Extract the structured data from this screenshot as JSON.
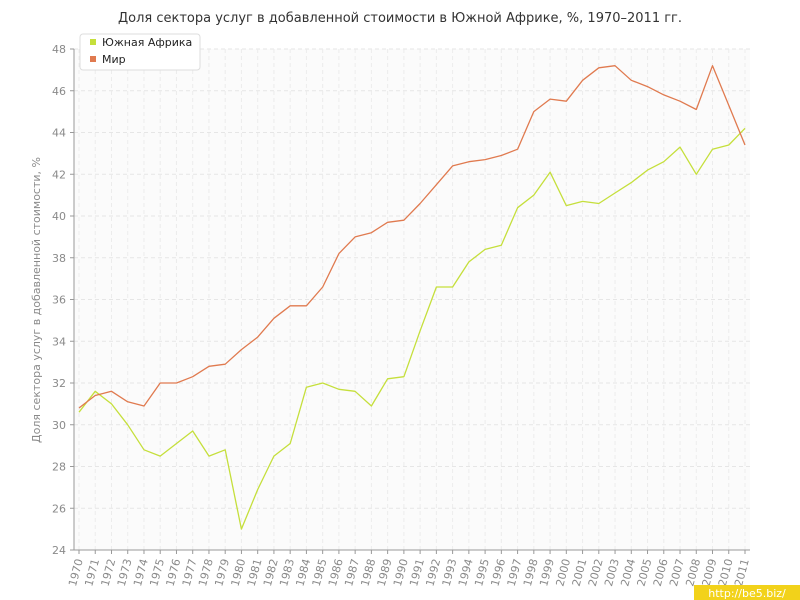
{
  "chart_data": {
    "type": "line",
    "title": "Доля сектора услуг в добавленной стоимости в Южной Африке, %, 1970–2011 гг.",
    "xlabel": "",
    "ylabel": "Доля сектора услуг в добавленной стоимости, %",
    "x": [
      "1970",
      "1971",
      "1972",
      "1973",
      "1974",
      "1975",
      "1976",
      "1977",
      "1978",
      "1979",
      "1980",
      "1981",
      "1982",
      "1983",
      "1984",
      "1985",
      "1986",
      "1987",
      "1988",
      "1989",
      "1990",
      "1991",
      "1992",
      "1993",
      "1994",
      "1995",
      "1996",
      "1997",
      "1998",
      "1999",
      "2000",
      "2001",
      "2002",
      "2003",
      "2004",
      "2005",
      "2006",
      "2007",
      "2008",
      "2009",
      "2010",
      "2011"
    ],
    "ylim": [
      24,
      48
    ],
    "yticks": [
      24,
      26,
      28,
      30,
      32,
      34,
      36,
      38,
      40,
      42,
      44,
      46,
      48
    ],
    "grid": true,
    "legend": "top-left",
    "series": [
      {
        "name": "Южная Африка",
        "color": "#c5df3b",
        "values": [
          30.6,
          31.6,
          31.0,
          30.0,
          28.8,
          28.5,
          29.1,
          29.7,
          28.5,
          28.8,
          25.0,
          26.9,
          28.5,
          29.1,
          31.8,
          32.0,
          31.7,
          31.6,
          30.9,
          32.2,
          32.3,
          34.5,
          36.6,
          36.6,
          37.8,
          38.4,
          38.6,
          40.4,
          41.0,
          42.1,
          40.5,
          40.7,
          40.6,
          41.1,
          41.6,
          42.2,
          42.6,
          43.3,
          42.0,
          43.2,
          43.4,
          44.2
        ]
      },
      {
        "name": "Мир",
        "color": "#e07a4f",
        "values": [
          30.8,
          31.4,
          31.6,
          31.1,
          30.9,
          32.0,
          32.0,
          32.3,
          32.8,
          32.9,
          33.6,
          34.2,
          35.1,
          35.7,
          35.7,
          36.6,
          38.2,
          39.0,
          39.2,
          39.7,
          39.8,
          40.6,
          41.5,
          42.4,
          42.6,
          42.7,
          42.9,
          43.2,
          45.0,
          45.6,
          45.5,
          46.5,
          47.1,
          47.2,
          46.5,
          46.2,
          45.8,
          45.5,
          45.1,
          47.2,
          45.3,
          43.4
        ]
      }
    ]
  },
  "watermark": "http://be5.biz/"
}
